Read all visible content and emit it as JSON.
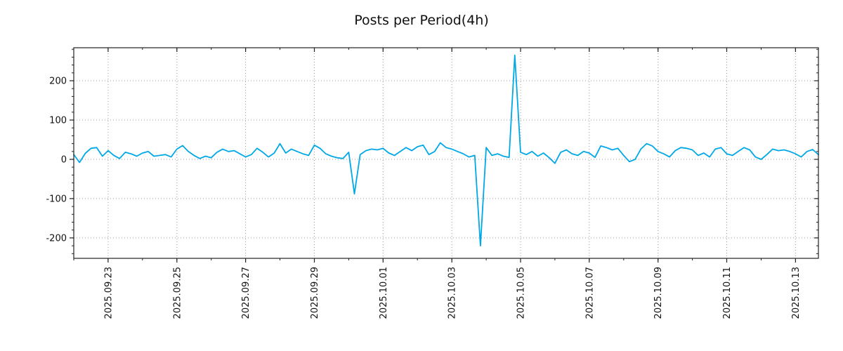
{
  "title": "Posts per Period(4h)",
  "chart_data": {
    "type": "line",
    "title": "Posts per Period(4h)",
    "x_start": "2025-09-22 00:00",
    "interval_hours": 4,
    "values": [
      12,
      -8,
      15,
      28,
      30,
      8,
      22,
      10,
      2,
      18,
      14,
      8,
      16,
      20,
      8,
      10,
      12,
      6,
      26,
      35,
      20,
      10,
      2,
      8,
      4,
      18,
      26,
      20,
      22,
      14,
      6,
      12,
      28,
      18,
      6,
      16,
      40,
      16,
      26,
      20,
      14,
      10,
      36,
      28,
      14,
      8,
      4,
      2,
      18,
      -88,
      12,
      22,
      26,
      24,
      28,
      16,
      10,
      20,
      30,
      22,
      32,
      36,
      12,
      20,
      42,
      30,
      26,
      20,
      14,
      6,
      10,
      -220,
      30,
      10,
      14,
      8,
      5,
      265,
      18,
      12,
      20,
      8,
      16,
      4,
      -10,
      18,
      24,
      14,
      10,
      20,
      16,
      5,
      34,
      30,
      24,
      28,
      10,
      -6,
      0,
      26,
      40,
      34,
      20,
      14,
      6,
      22,
      30,
      28,
      24,
      10,
      16,
      6,
      26,
      30,
      14,
      10,
      20,
      30,
      24,
      6,
      0,
      12,
      26,
      22,
      24,
      20,
      14,
      6,
      20,
      25,
      12
    ],
    "x_tick_labels": [
      "2025.09.23",
      "2025.09.25",
      "2025.09.27",
      "2025.09.29",
      "2025.10.01",
      "2025.10.03",
      "2025.10.05",
      "2025.10.07",
      "2025.10.09",
      "2025.10.11",
      "2025.10.13"
    ],
    "x_tick_indices": [
      6,
      18,
      30,
      42,
      54,
      66,
      78,
      90,
      102,
      114,
      126
    ],
    "x_minor_every": 6,
    "y_ticks": [
      -200,
      -100,
      0,
      100,
      200
    ],
    "y_minor_step": 20,
    "ylim": [
      -252,
      284
    ],
    "line_color": "#00a8e8",
    "grid_color": "#9a9a9a",
    "axis_color": "#222222",
    "grid": "dotted",
    "legend": "none"
  }
}
